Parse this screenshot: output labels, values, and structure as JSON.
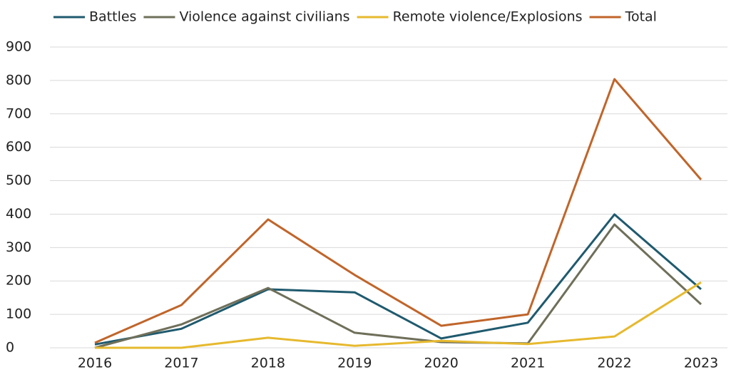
{
  "chart_data": {
    "type": "line",
    "x": [
      2016,
      2017,
      2018,
      2019,
      2020,
      2021,
      2022,
      2023
    ],
    "series": [
      {
        "name": "Battles",
        "color": "#1f5a6e",
        "values": [
          10,
          57,
          175,
          166,
          28,
          75,
          399,
          175
        ]
      },
      {
        "name": "Violence against civilians",
        "color": "#6f6f5a",
        "values": [
          0,
          70,
          179,
          45,
          17,
          13,
          369,
          130
        ]
      },
      {
        "name": "Remote violence/Explosions",
        "color": "#e6b92e",
        "values": [
          0,
          0,
          30,
          6,
          21,
          11,
          34,
          196
        ]
      },
      {
        "name": "Total",
        "color": "#c0652a",
        "values": [
          15,
          128,
          384,
          218,
          66,
          100,
          804,
          503
        ]
      }
    ],
    "xlim": [
      2016,
      2023
    ],
    "ylim": [
      0,
      900
    ],
    "yticks": [
      0,
      100,
      200,
      300,
      400,
      500,
      600,
      700,
      800,
      900
    ],
    "grid": true,
    "legend": "top"
  }
}
